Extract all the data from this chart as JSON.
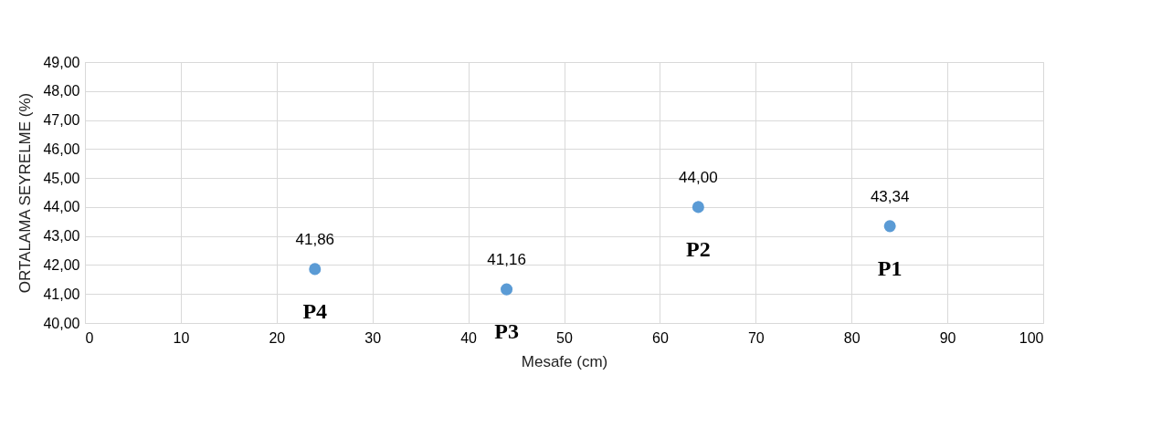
{
  "chart_data": {
    "type": "scatter",
    "xlabel": "Mesafe (cm)",
    "ylabel": "ORTALAMA SEYRELME (%)",
    "x": [
      24,
      44,
      64,
      84
    ],
    "series": [
      {
        "color": "#5b9bd5",
        "values": [
          41.86,
          41.16,
          44.0,
          43.34
        ],
        "value_labels": [
          "41,86",
          "41,16",
          "44,00",
          "43,34"
        ]
      }
    ],
    "annotations": [
      {
        "text": "P4",
        "x": 24,
        "y": 41.86
      },
      {
        "text": "P3",
        "x": 44,
        "y": 41.16
      },
      {
        "text": "P2",
        "x": 64,
        "y": 44.0
      },
      {
        "text": "P1",
        "x": 84,
        "y": 43.34
      }
    ],
    "xlim": [
      0,
      100
    ],
    "xticks": [
      0,
      10,
      20,
      30,
      40,
      50,
      60,
      70,
      80,
      90,
      100
    ],
    "ylim": [
      40,
      49
    ],
    "yticks": [
      {
        "value": 40,
        "label": "40,00"
      },
      {
        "value": 41,
        "label": "41,00"
      },
      {
        "value": 42,
        "label": "42,00"
      },
      {
        "value": 43,
        "label": "43,00"
      },
      {
        "value": 44,
        "label": "44,00"
      },
      {
        "value": 45,
        "label": "45,00"
      },
      {
        "value": 46,
        "label": "46,00"
      },
      {
        "value": 47,
        "label": "47,00"
      },
      {
        "value": 48,
        "label": "48,00"
      },
      {
        "value": 49,
        "label": "49,00"
      }
    ],
    "grid": true,
    "marker": "circle"
  }
}
